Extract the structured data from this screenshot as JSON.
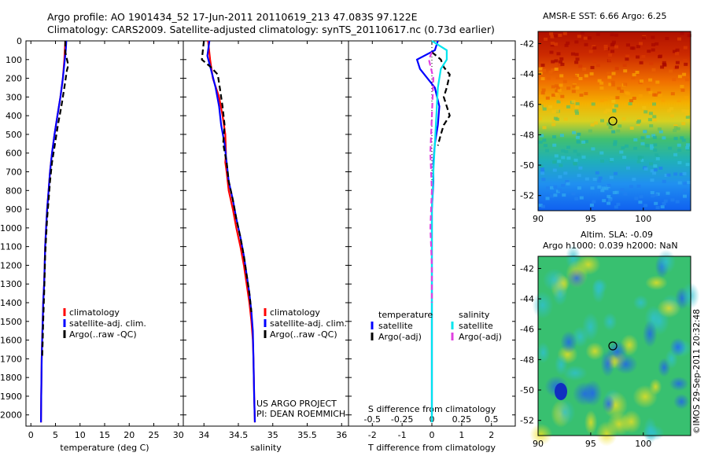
{
  "header": {
    "title_line1": "Argo profile: AO 1901434_52 17-Jun-2011 20110619_213 47.083S 97.122E",
    "title_line2": "Climatology: CARS2009. Satellite-adjusted climatology: synTS_20110617.nc (0.73d earlier)"
  },
  "depth_ticks": [
    0,
    100,
    200,
    300,
    400,
    500,
    600,
    700,
    800,
    900,
    1000,
    1100,
    1200,
    1300,
    1400,
    1500,
    1600,
    1700,
    1800,
    1900,
    2000
  ],
  "chart_data": [
    {
      "type": "line",
      "id": "temperature",
      "xlabel": "temperature (deg C)",
      "xlim": [
        -1,
        31
      ],
      "xticks": [
        0,
        5,
        10,
        15,
        20,
        25,
        30
      ],
      "ylim": [
        0,
        2060
      ],
      "y_reversed": true,
      "legend": [
        "climatology",
        "satellite-adj. clim.",
        "Argo(..raw -QC)"
      ],
      "legend_placement": "lower-center",
      "series": [
        {
          "name": "climatology",
          "color": "#ff0000",
          "style": "solid",
          "x": [
            7.0,
            6.9,
            6.8,
            6.5,
            6.0,
            5.4,
            4.8,
            4.3,
            3.9,
            3.6,
            3.3,
            3.1,
            2.9,
            2.8,
            2.7,
            2.5,
            2.4,
            2.3,
            2.2,
            2.1,
            2.05
          ],
          "y": [
            0,
            50,
            100,
            200,
            300,
            400,
            500,
            600,
            700,
            800,
            900,
            1000,
            1100,
            1200,
            1300,
            1400,
            1500,
            1600,
            1700,
            1900,
            2040
          ]
        },
        {
          "name": "satellite-adj. clim.",
          "color": "#0000ff",
          "style": "solid",
          "x": [
            7.2,
            7.1,
            6.9,
            6.5,
            6.0,
            5.4,
            4.8,
            4.3,
            3.9,
            3.6,
            3.3,
            3.1,
            2.9,
            2.8,
            2.7,
            2.5,
            2.4,
            2.3,
            2.2,
            2.1,
            2.05
          ],
          "y": [
            0,
            50,
            100,
            200,
            300,
            400,
            500,
            600,
            700,
            800,
            900,
            1000,
            1100,
            1200,
            1300,
            1400,
            1500,
            1600,
            1700,
            1900,
            2040
          ]
        },
        {
          "name": "Argo(..raw -QC)",
          "color": "#000000",
          "style": "dashed",
          "x": [
            7.0,
            7.0,
            7.6,
            7.3,
            6.8,
            6.2,
            5.5,
            4.9,
            4.3,
            3.9,
            3.6,
            3.3,
            3.1,
            2.9,
            2.8,
            2.7,
            2.5,
            2.4,
            2.3
          ],
          "y": [
            0,
            60,
            130,
            160,
            250,
            350,
            450,
            550,
            650,
            750,
            850,
            950,
            1050,
            1150,
            1250,
            1350,
            1500,
            1600,
            1700
          ]
        }
      ]
    },
    {
      "type": "line",
      "id": "salinity",
      "xlabel": "salinity",
      "xlim": [
        33.7,
        36.1
      ],
      "xticks": [
        34,
        34.5,
        35,
        35.5,
        36
      ],
      "ylim": [
        0,
        2060
      ],
      "y_reversed": true,
      "legend": [
        "climatology",
        "satellite-adj. clim.",
        "Argo(..raw -QC)"
      ],
      "annotation": [
        "US ARGO PROJECT",
        "PI: DEAN ROEMMICH"
      ],
      "series": [
        {
          "name": "climatology",
          "color": "#ff0000",
          "style": "solid",
          "x": [
            34.06,
            34.09,
            34.13,
            34.22,
            34.27,
            34.31,
            34.32,
            34.31,
            34.33,
            34.36,
            34.42,
            34.47,
            34.53,
            34.58,
            34.62,
            34.66,
            34.69,
            34.71,
            34.72,
            34.73,
            34.74
          ],
          "y": [
            0,
            100,
            200,
            300,
            400,
            500,
            600,
            650,
            700,
            800,
            900,
            1000,
            1100,
            1200,
            1300,
            1400,
            1500,
            1600,
            1700,
            1900,
            2040
          ]
        },
        {
          "name": "satellite-adj. clim.",
          "color": "#0000ff",
          "style": "solid",
          "x": [
            34.08,
            34.05,
            34.1,
            34.17,
            34.22,
            34.25,
            34.3,
            34.33,
            34.36,
            34.42,
            34.47,
            34.53,
            34.58,
            34.62,
            34.66,
            34.69,
            34.71,
            34.72,
            34.73,
            34.74
          ],
          "y": [
            0,
            80,
            150,
            250,
            350,
            450,
            550,
            650,
            750,
            850,
            950,
            1050,
            1150,
            1250,
            1350,
            1450,
            1550,
            1700,
            1900,
            2040
          ]
        },
        {
          "name": "Argo(..raw -QC)",
          "color": "#000000",
          "style": "dashed",
          "x": [
            34.0,
            33.97,
            34.1,
            34.2,
            34.23,
            34.27,
            34.3,
            34.28,
            34.33,
            34.36,
            34.42,
            34.47,
            34.53,
            34.58,
            34.62,
            34.66,
            34.69
          ],
          "y": [
            0,
            100,
            140,
            180,
            250,
            350,
            450,
            550,
            650,
            750,
            850,
            950,
            1050,
            1150,
            1250,
            1350,
            1450
          ]
        }
      ]
    },
    {
      "type": "line",
      "id": "differences",
      "xlabel": "T difference from climatology",
      "xlabel_top": "S difference from climatology",
      "xlim": [
        -2.8,
        2.8
      ],
      "xticks": [
        -2,
        -1,
        0,
        1,
        2
      ],
      "xticks_top": [
        -0.5,
        -0.25,
        0,
        0.25,
        0.5
      ],
      "xticks_top_labels": [
        "-0.5",
        "-0.25",
        "0",
        "0.25",
        "0.5"
      ],
      "ylim": [
        0,
        2060
      ],
      "y_reversed": true,
      "legend_headers": [
        "temperature",
        "salinity"
      ],
      "legend": [
        {
          "group": "temperature",
          "label": "satellite",
          "color": "#0000ff"
        },
        {
          "group": "temperature",
          "label": "Argo(-adj)",
          "color": "#000000"
        },
        {
          "group": "salinity",
          "label": "satellite",
          "color": "#00e5ee"
        },
        {
          "group": "salinity",
          "label": "Argo(-adj)",
          "color": "#e040e0"
        }
      ],
      "series": [
        {
          "name": "T satellite",
          "color": "#0000ff",
          "style": "solid",
          "x": [
            0.2,
            0.1,
            -0.5,
            -0.4,
            0.1,
            0.25,
            0.2,
            0.1,
            0.05,
            0.05,
            0.0,
            0.0,
            0.0,
            0.0,
            0.0,
            0.0
          ],
          "y": [
            0,
            50,
            100,
            150,
            250,
            350,
            450,
            550,
            650,
            750,
            900,
            1100,
            1300,
            1500,
            1700,
            2000
          ]
        },
        {
          "name": "T Argo(-adj)",
          "color": "#000000",
          "style": "dashed",
          "x": [
            0.0,
            0.3,
            0.4,
            0.6,
            0.5,
            0.4,
            0.5,
            0.6,
            0.4,
            0.3,
            0.2
          ],
          "y": [
            60,
            100,
            140,
            180,
            250,
            300,
            350,
            400,
            450,
            500,
            560
          ]
        },
        {
          "name": "S satellite",
          "color": "#00e5ee",
          "style": "solid",
          "x": [
            0.0,
            0.5,
            0.5,
            0.3,
            0.2,
            0.15,
            0.1,
            0.05,
            0.0,
            0.0,
            0.0,
            0.0,
            0.0
          ],
          "y": [
            0,
            50,
            100,
            150,
            250,
            400,
            550,
            700,
            900,
            1200,
            1500,
            1800,
            2040
          ]
        },
        {
          "name": "S Argo(-adj)",
          "color": "#e040e0",
          "style": "dashed",
          "x": [
            0.0,
            -0.1,
            0.05,
            0.0,
            -0.05,
            0.0,
            -0.05,
            0.0,
            0.0
          ],
          "y": [
            60,
            100,
            200,
            400,
            600,
            800,
            1000,
            1200,
            1400
          ]
        }
      ]
    },
    {
      "type": "heatmap",
      "id": "sst-map",
      "title": "AMSR-E SST: 6.66 Argo: 6.25",
      "xlim": [
        90,
        104.5
      ],
      "ylim": [
        -53,
        -41.2
      ],
      "xticks": [
        90,
        95,
        100
      ],
      "yticks": [
        -42,
        -44,
        -46,
        -48,
        -50,
        -52
      ],
      "marker": {
        "lon": 97.1,
        "lat": -47.1
      }
    },
    {
      "type": "heatmap",
      "id": "sla-map",
      "title_line1": "Altim. SLA: -0.09",
      "title_line2": "Argo h1000: 0.039 h2000: NaN",
      "xlim": [
        90,
        104.5
      ],
      "ylim": [
        -53,
        -41.2
      ],
      "xticks": [
        90,
        95,
        100
      ],
      "yticks": [
        -42,
        -44,
        -46,
        -48,
        -50,
        -52
      ],
      "marker": {
        "lon": 97.1,
        "lat": -47.1
      }
    }
  ],
  "footer": {
    "credit": "©IMOS 29-Sep-2011 20:32:48"
  }
}
